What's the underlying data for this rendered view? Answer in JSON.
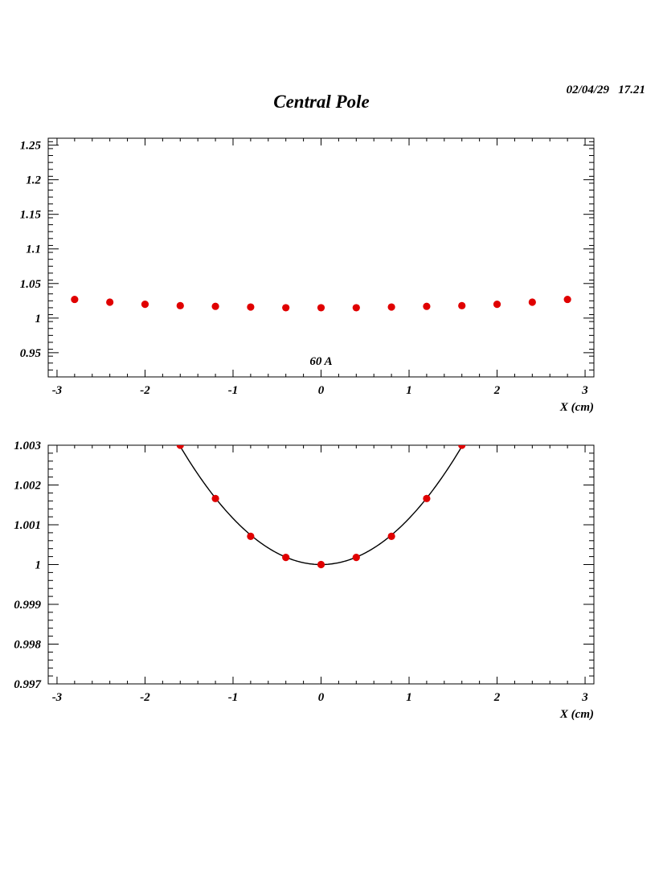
{
  "page": {
    "title": "Central Pole",
    "timestamp": "02/04/29   17.21"
  },
  "chart_data": [
    {
      "type": "scatter",
      "annotation": "60 A",
      "xlabel": "X (cm)",
      "ylabel": "",
      "xlim": [
        -3.1,
        3.1
      ],
      "ylim": [
        0.915,
        1.26
      ],
      "x_ticks": [
        -3,
        -2,
        -1,
        0,
        1,
        2,
        3
      ],
      "x_tick_labels": [
        "-3",
        "-2",
        "-1",
        "0",
        "1",
        "2",
        "3"
      ],
      "y_ticks": [
        0.95,
        1,
        1.05,
        1.1,
        1.15,
        1.2,
        1.25
      ],
      "y_tick_labels": [
        "0.95",
        "1",
        "1.05",
        "1.1",
        "1.15",
        "1.2",
        "1.25"
      ],
      "marker_color": "#e00000",
      "points": [
        [
          -2.8,
          1.027
        ],
        [
          -2.4,
          1.023
        ],
        [
          -2.0,
          1.02
        ],
        [
          -1.6,
          1.018
        ],
        [
          -1.2,
          1.017
        ],
        [
          -0.8,
          1.016
        ],
        [
          -0.4,
          1.015
        ],
        [
          0.0,
          1.015
        ],
        [
          0.4,
          1.015
        ],
        [
          0.8,
          1.016
        ],
        [
          1.2,
          1.017
        ],
        [
          1.6,
          1.018
        ],
        [
          2.0,
          1.02
        ],
        [
          2.4,
          1.023
        ],
        [
          2.8,
          1.027
        ]
      ]
    },
    {
      "type": "scatter",
      "xlabel": "X (cm)",
      "ylabel": "",
      "xlim": [
        -3.1,
        3.1
      ],
      "ylim": [
        0.997,
        1.003
      ],
      "x_ticks": [
        -3,
        -2,
        -1,
        0,
        1,
        2,
        3
      ],
      "x_tick_labels": [
        "-3",
        "-2",
        "-1",
        "0",
        "1",
        "2",
        "3"
      ],
      "y_ticks": [
        0.997,
        0.998,
        0.999,
        1,
        1.001,
        1.002,
        1.003
      ],
      "y_tick_labels": [
        "0.997",
        "0.998",
        "0.999",
        "1",
        "1.001",
        "1.002",
        "1.003"
      ],
      "marker_color": "#e00000",
      "points": [
        [
          -1.6,
          1.003
        ],
        [
          -1.2,
          1.00166
        ],
        [
          -0.8,
          1.00071
        ],
        [
          -0.4,
          1.00018
        ],
        [
          0.0,
          1.0
        ],
        [
          0.4,
          1.00018
        ],
        [
          0.8,
          1.00071
        ],
        [
          1.2,
          1.00166
        ],
        [
          1.6,
          1.003
        ]
      ],
      "fit": {
        "type": "quadratic",
        "a": 1.0,
        "b": 0.0,
        "c": 0.00116
      }
    }
  ]
}
